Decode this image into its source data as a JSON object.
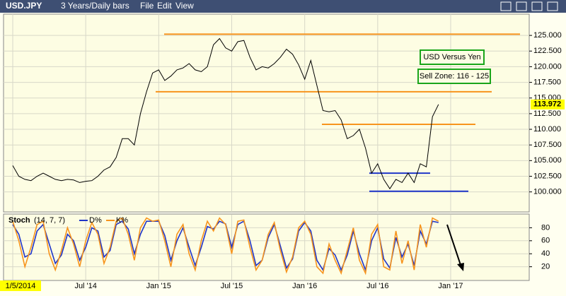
{
  "toolbar": {
    "symbol": "USD.JPY",
    "period": "3 Years/Daily bars",
    "menus": [
      "File",
      "Edit",
      "View"
    ]
  },
  "chart_data": [
    {
      "type": "line",
      "color": "#000000",
      "categories": [
        "1/5/2014",
        null,
        null,
        null,
        null,
        null,
        null,
        null,
        null,
        null,
        null,
        null,
        "Jul '14",
        null,
        null,
        null,
        null,
        null,
        null,
        null,
        null,
        null,
        null,
        null,
        "Jan '15",
        null,
        null,
        null,
        null,
        null,
        null,
        null,
        null,
        null,
        null,
        null,
        "Jul '15",
        null,
        null,
        null,
        null,
        null,
        null,
        null,
        null,
        null,
        null,
        null,
        "Jan '16",
        null,
        null,
        null,
        null,
        null,
        null,
        null,
        null,
        null,
        null,
        null,
        "Jul '16",
        null,
        null,
        null,
        null,
        null,
        null,
        null,
        null,
        null,
        null,
        null,
        "Jan '17"
      ],
      "values": [
        104.2,
        102.5,
        102.0,
        101.8,
        102.5,
        103.0,
        102.5,
        102.0,
        101.8,
        102.0,
        101.9,
        101.5,
        101.7,
        101.8,
        102.5,
        103.5,
        104.0,
        105.5,
        108.5,
        108.5,
        107.5,
        112.5,
        116.0,
        119.0,
        119.5,
        117.8,
        118.5,
        119.5,
        119.8,
        120.5,
        119.5,
        119.2,
        120.0,
        123.5,
        124.5,
        123.0,
        122.5,
        124.0,
        124.2,
        121.5,
        119.5,
        120.0,
        119.8,
        120.5,
        121.5,
        122.8,
        122.0,
        120.3,
        118.0,
        121.0,
        117.0,
        113.0,
        112.8,
        113.0,
        111.5,
        108.5,
        109.0,
        110.0,
        107.0,
        103.0,
        104.5,
        102.0,
        100.5,
        102.0,
        101.5,
        103.0,
        101.5,
        104.5,
        104.0,
        112.0,
        113.972,
        null,
        null
      ],
      "ylim": [
        96.8,
        128.4
      ],
      "yticks": [
        {
          "value": 100,
          "label": "100.000"
        },
        {
          "value": 102.5,
          "label": "102.500"
        },
        {
          "value": 105,
          "label": "105.000"
        },
        {
          "value": 107.5,
          "label": "107.500"
        },
        {
          "value": 110,
          "label": "110.000"
        },
        {
          "value": 112.5,
          "label": "112.500"
        },
        {
          "value": 115,
          "label": "115.000"
        },
        {
          "value": 117.5,
          "label": "117.500"
        },
        {
          "value": 120,
          "label": "120.000"
        },
        {
          "value": 122.5,
          "label": "122.500"
        },
        {
          "value": 125,
          "label": "125.000"
        }
      ],
      "grid": true,
      "annotations": [
        "USD Versus Yen",
        "Sell Zone: 116 - 125"
      ],
      "levels": [
        {
          "value": 125.2,
          "color": "#f7941d"
        },
        {
          "value": 116.0,
          "color": "#f7941d"
        },
        {
          "value": 110.8,
          "color": "#f7941d"
        },
        {
          "value": 103.0,
          "color": "#1f35c8"
        },
        {
          "value": 100.1,
          "color": "#1f35c8"
        }
      ]
    },
    {
      "type": "line",
      "title": "Stoch",
      "params": "(14, 7, 7)",
      "series": [
        {
          "name": "D%",
          "color": "#1f35c8",
          "values": [
            85,
            70,
            35,
            40,
            75,
            85,
            55,
            25,
            38,
            70,
            60,
            30,
            50,
            80,
            75,
            35,
            45,
            85,
            90,
            78,
            40,
            70,
            90,
            90,
            90,
            68,
            30,
            60,
            80,
            50,
            22,
            50,
            82,
            78,
            90,
            86,
            50,
            85,
            90,
            60,
            22,
            30,
            65,
            85,
            52,
            18,
            32,
            75,
            88,
            75,
            30,
            15,
            48,
            38,
            15,
            38,
            75,
            40,
            15,
            60,
            80,
            32,
            18,
            65,
            35,
            55,
            22,
            75,
            55,
            90,
            88,
            null,
            null
          ]
        },
        {
          "name": "K%",
          "color": "#f7941d",
          "values": [
            90,
            60,
            20,
            50,
            85,
            90,
            40,
            15,
            45,
            80,
            55,
            20,
            60,
            88,
            70,
            25,
            50,
            90,
            95,
            70,
            30,
            80,
            95,
            90,
            92,
            60,
            20,
            70,
            85,
            40,
            15,
            60,
            90,
            75,
            95,
            85,
            40,
            90,
            92,
            50,
            15,
            30,
            70,
            88,
            45,
            12,
            35,
            80,
            90,
            70,
            20,
            10,
            55,
            30,
            10,
            45,
            80,
            30,
            10,
            70,
            85,
            20,
            15,
            75,
            25,
            60,
            15,
            85,
            50,
            95,
            90,
            null,
            null
          ]
        }
      ],
      "ylim": [
        0,
        100
      ],
      "yticks": [
        20,
        40,
        60,
        80
      ],
      "grid": true
    }
  ]
}
